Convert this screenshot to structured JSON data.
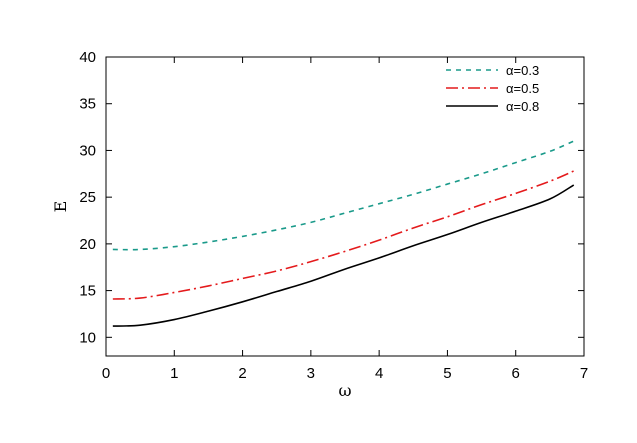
{
  "chart_data": {
    "type": "line",
    "title": "",
    "xlabel": "ω",
    "ylabel": "E",
    "xlim": [
      0,
      7
    ],
    "ylim": [
      8,
      40
    ],
    "xticks": [
      0,
      1,
      2,
      3,
      4,
      5,
      6,
      7
    ],
    "yticks": [
      10,
      15,
      20,
      25,
      30,
      35,
      40
    ],
    "grid": false,
    "legend_position": "top-right",
    "series": [
      {
        "name": "α=0.3",
        "color": "#1a9a8a",
        "dash": "dashed",
        "x": [
          0.1,
          0.5,
          1.0,
          1.5,
          2.0,
          2.5,
          3.0,
          3.5,
          4.0,
          4.5,
          5.0,
          5.5,
          6.0,
          6.5,
          6.85
        ],
        "y": [
          19.4,
          19.4,
          19.7,
          20.2,
          20.8,
          21.5,
          22.3,
          23.3,
          24.3,
          25.3,
          26.4,
          27.5,
          28.7,
          29.9,
          31.0
        ]
      },
      {
        "name": "α=0.5",
        "color": "#e41a1c",
        "dash": "dashdot",
        "x": [
          0.1,
          0.5,
          1.0,
          1.5,
          2.0,
          2.5,
          3.0,
          3.5,
          4.0,
          4.5,
          5.0,
          5.5,
          6.0,
          6.5,
          6.85
        ],
        "y": [
          14.1,
          14.2,
          14.8,
          15.5,
          16.3,
          17.1,
          18.1,
          19.2,
          20.4,
          21.7,
          22.9,
          24.2,
          25.4,
          26.7,
          27.8
        ]
      },
      {
        "name": "α=0.8",
        "color": "#000000",
        "dash": "solid",
        "x": [
          0.1,
          0.5,
          1.0,
          1.5,
          2.0,
          2.5,
          3.0,
          3.5,
          4.0,
          4.5,
          5.0,
          5.5,
          6.0,
          6.5,
          6.85
        ],
        "y": [
          11.2,
          11.3,
          11.9,
          12.8,
          13.8,
          14.9,
          16.0,
          17.3,
          18.5,
          19.8,
          21.0,
          22.3,
          23.5,
          24.8,
          26.3
        ]
      }
    ]
  }
}
